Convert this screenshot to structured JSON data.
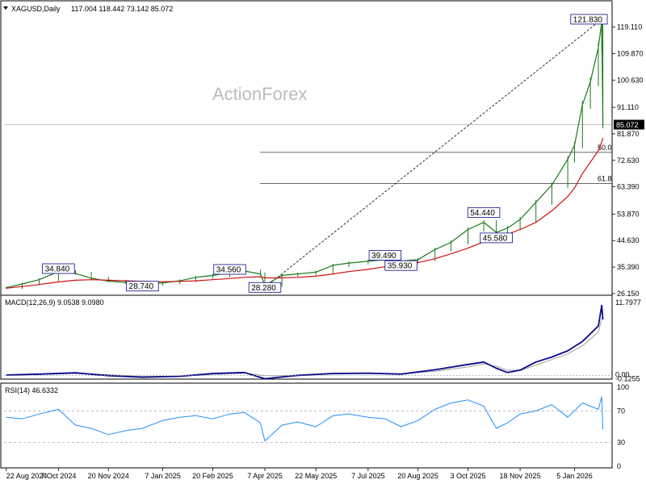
{
  "header": {
    "symbol": "XAGUSD,Daily",
    "ohlc": "117.004 118.442 73.142 85.072"
  },
  "watermark": "ActionForex",
  "colors": {
    "price": "#1b7a1b",
    "ma": "#d01010",
    "macd": "#0a0a8c",
    "signal": "#a0a0a0",
    "rsi": "#1e90ff",
    "level_line": "#333333",
    "box_border": "#0a0a8c"
  },
  "chart_data": [
    {
      "type": "line",
      "panel": "price",
      "x_dates": [
        "2024-08-22",
        "2024-09-05",
        "2024-09-20",
        "2024-10-07",
        "2024-10-22",
        "2024-11-05",
        "2024-11-20",
        "2024-12-05",
        "2024-12-20",
        "2025-01-07",
        "2025-01-22",
        "2025-02-05",
        "2025-02-20",
        "2025-03-07",
        "2025-03-20",
        "2025-04-03",
        "2025-04-07",
        "2025-04-22",
        "2025-05-06",
        "2025-05-22",
        "2025-06-06",
        "2025-06-20",
        "2025-07-07",
        "2025-07-22",
        "2025-08-05",
        "2025-08-20",
        "2025-09-04",
        "2025-09-18",
        "2025-10-03",
        "2025-10-17",
        "2025-10-28",
        "2025-11-07",
        "2025-11-18",
        "2025-12-02",
        "2025-12-16",
        "2025-12-30",
        "2026-01-05",
        "2026-01-12",
        "2026-01-19",
        "2026-01-26",
        "2026-01-29",
        "2026-01-30"
      ],
      "series": [
        {
          "name": "XAGUSD",
          "values": [
            28.2,
            29.5,
            31.0,
            33.8,
            33.2,
            31.5,
            30.5,
            30.0,
            29.4,
            29.9,
            30.6,
            31.8,
            32.5,
            33.4,
            34.0,
            33.0,
            29.0,
            32.5,
            33.0,
            33.6,
            36.0,
            36.8,
            37.4,
            38.0,
            37.5,
            38.0,
            41.5,
            44.0,
            48.5,
            51.0,
            47.5,
            49.0,
            52.0,
            58.0,
            64.0,
            73.0,
            78.0,
            92.0,
            100.0,
            112.0,
            121.0,
            85.07
          ]
        },
        {
          "name": "MA",
          "values": [
            28.0,
            28.6,
            29.3,
            30.2,
            30.8,
            31.0,
            30.8,
            30.6,
            30.4,
            30.3,
            30.4,
            30.6,
            31.0,
            31.4,
            31.8,
            32.0,
            31.6,
            31.6,
            31.8,
            32.2,
            33.0,
            33.8,
            34.6,
            35.5,
            36.1,
            36.9,
            38.3,
            40.0,
            42.0,
            44.2,
            45.5,
            46.8,
            48.5,
            51.0,
            55.0,
            60.0,
            63.0,
            68.0,
            72.0,
            76.0,
            79.0,
            80.5
          ]
        }
      ],
      "ylim": [
        25.0,
        123.5
      ],
      "y_ticks": [
        "119.110",
        "109.870",
        "100.630",
        "91.110",
        "81.870",
        "72.630",
        "63.390",
        "53.870",
        "44.630",
        "35.390",
        "26.150"
      ],
      "current_price_label": "85.072",
      "horizontal_levels": [
        {
          "id": "fib-50",
          "label": "50.0",
          "y": 75.4
        },
        {
          "id": "fib-618",
          "label": "61.8",
          "y": 64.5
        },
        {
          "id": "current-price",
          "label": "",
          "y": 85.07
        }
      ],
      "annotations": [
        {
          "id": "peak-121",
          "label": "121.830",
          "date": "2026-01-29",
          "y": 121.83
        },
        {
          "id": "high-3484",
          "label": "34.840",
          "date": "2024-10-07",
          "y": 34.84
        },
        {
          "id": "high-3456",
          "label": "34.560",
          "date": "2025-03-07",
          "y": 34.56
        },
        {
          "id": "low-2874",
          "label": "28.740",
          "date": "2024-12-20",
          "y": 28.74
        },
        {
          "id": "low-2828",
          "label": "28.280",
          "date": "2025-04-07",
          "y": 28.28
        },
        {
          "id": "high-3949",
          "label": "39.490",
          "date": "2025-07-22",
          "y": 39.49
        },
        {
          "id": "low-3593",
          "label": "35.930",
          "date": "2025-08-05",
          "y": 35.93
        },
        {
          "id": "high-5444",
          "label": "54.440",
          "date": "2025-10-17",
          "y": 54.44
        },
        {
          "id": "low-4558",
          "label": "45.580",
          "date": "2025-10-28",
          "y": 45.58
        }
      ],
      "dashed_trendline": {
        "from": {
          "date": "2025-04-07",
          "y": 28.28
        },
        "to": {
          "date": "2026-01-29",
          "y": 121.83
        }
      }
    },
    {
      "type": "line",
      "panel": "macd",
      "title": "MACD(12,26,9) 9.0538 9.0980",
      "x_dates": [
        "2024-08-22",
        "2024-09-20",
        "2024-10-22",
        "2024-11-20",
        "2024-12-20",
        "2025-01-22",
        "2025-02-20",
        "2025-03-20",
        "2025-04-07",
        "2025-05-06",
        "2025-06-06",
        "2025-07-07",
        "2025-08-05",
        "2025-09-04",
        "2025-10-03",
        "2025-10-17",
        "2025-10-28",
        "2025-11-07",
        "2025-11-18",
        "2025-12-02",
        "2025-12-16",
        "2025-12-30",
        "2026-01-12",
        "2026-01-26",
        "2026-01-29",
        "2026-01-30"
      ],
      "series": [
        {
          "name": "MACD",
          "values": [
            0.1,
            0.25,
            0.45,
            0.0,
            -0.25,
            -0.1,
            0.35,
            0.5,
            -0.5,
            0.05,
            0.35,
            0.4,
            0.25,
            0.95,
            1.8,
            2.2,
            1.2,
            0.5,
            0.9,
            2.2,
            3.0,
            4.0,
            5.5,
            8.0,
            11.3,
            9.05
          ]
        },
        {
          "name": "Signal",
          "values": [
            0.05,
            0.2,
            0.35,
            0.15,
            -0.1,
            -0.1,
            0.2,
            0.4,
            0.0,
            0.0,
            0.25,
            0.35,
            0.3,
            0.7,
            1.4,
            1.9,
            1.5,
            0.9,
            0.8,
            1.7,
            2.6,
            3.5,
            4.8,
            7.0,
            9.2,
            9.1
          ]
        }
      ],
      "ylim": [
        -0.3,
        12.3
      ],
      "y_ticks": [
        "11.7977",
        "0.00",
        "-0.1255"
      ]
    },
    {
      "type": "line",
      "panel": "rsi",
      "title": "RSI(14) 46.6332",
      "x_dates": [
        "2024-08-22",
        "2024-09-05",
        "2024-09-20",
        "2024-10-07",
        "2024-10-22",
        "2024-11-05",
        "2024-11-20",
        "2024-12-05",
        "2024-12-20",
        "2025-01-07",
        "2025-01-22",
        "2025-02-05",
        "2025-02-20",
        "2025-03-07",
        "2025-03-20",
        "2025-04-03",
        "2025-04-07",
        "2025-04-22",
        "2025-05-06",
        "2025-05-22",
        "2025-06-06",
        "2025-06-20",
        "2025-07-07",
        "2025-07-22",
        "2025-08-05",
        "2025-08-20",
        "2025-09-04",
        "2025-09-18",
        "2025-10-03",
        "2025-10-17",
        "2025-10-28",
        "2025-11-07",
        "2025-11-18",
        "2025-12-02",
        "2025-12-16",
        "2025-12-30",
        "2026-01-12",
        "2026-01-26",
        "2026-01-29",
        "2026-01-30"
      ],
      "series": [
        {
          "name": "RSI",
          "values": [
            62,
            60,
            66,
            72,
            52,
            48,
            40,
            45,
            48,
            58,
            62,
            64,
            60,
            66,
            68,
            55,
            32,
            52,
            56,
            50,
            64,
            66,
            62,
            60,
            50,
            58,
            72,
            80,
            84,
            76,
            48,
            55,
            66,
            70,
            78,
            62,
            80,
            72,
            88,
            46.6
          ]
        }
      ],
      "ylim": [
        0,
        100
      ],
      "y_ticks": [
        "100",
        "70",
        "30",
        "0"
      ]
    }
  ],
  "x_axis_labels": [
    "22 Aug 2024",
    "7 Oct 2024",
    "20 Nov 2024",
    "7 Jan 2025",
    "20 Feb 2025",
    "7 Apr 2025",
    "22 May 2025",
    "7 Jul 2025",
    "20 Aug 2025",
    "3 Oct 2025",
    "18 Nov 2025",
    "5 Jan 2026"
  ],
  "x_axis_dates": [
    "2024-08-22",
    "2024-10-07",
    "2024-11-20",
    "2025-01-07",
    "2025-02-20",
    "2025-04-07",
    "2025-05-22",
    "2025-07-07",
    "2025-08-20",
    "2025-10-03",
    "2025-11-18",
    "2026-01-05"
  ]
}
